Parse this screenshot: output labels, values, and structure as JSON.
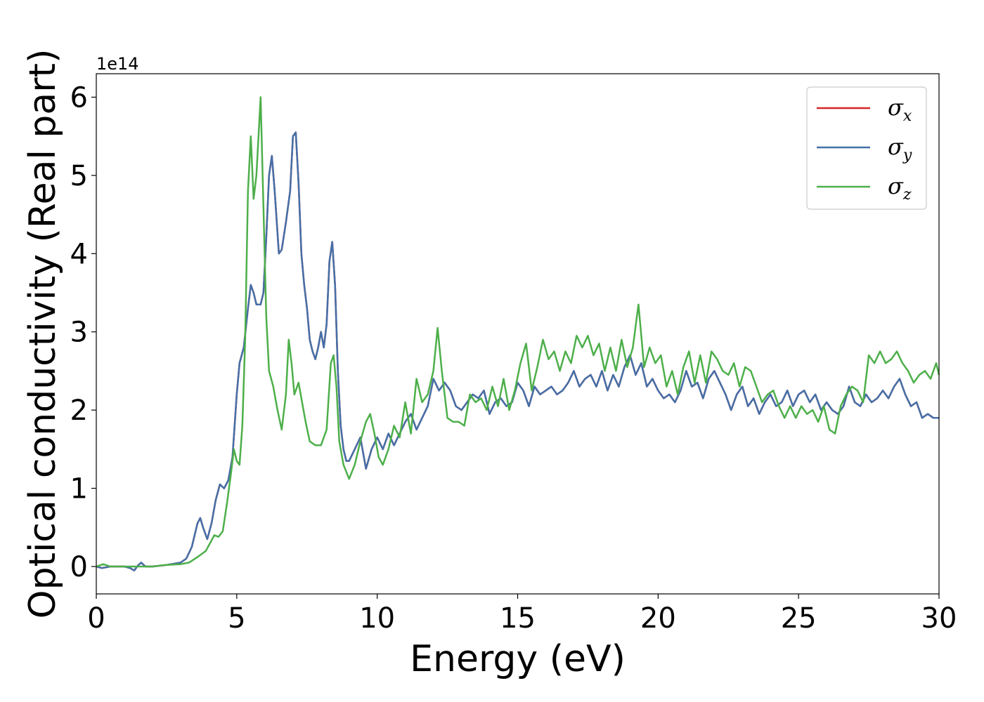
{
  "chart_data": {
    "type": "line",
    "xlabel": "Energy (eV)",
    "ylabel": "Optical conductivity (Real part)",
    "y_offset_label": "1e14",
    "xlim": [
      0,
      30
    ],
    "ylim": [
      -0.35,
      6.3
    ],
    "x_ticks": [
      0,
      5,
      10,
      15,
      20,
      25,
      30
    ],
    "y_ticks": [
      0,
      1,
      2,
      3,
      4,
      5,
      6
    ],
    "grid": false,
    "legend_position": "top-right",
    "series": [
      {
        "name": "σx",
        "symbol": "σ",
        "subscript": "x",
        "color": "#d62728",
        "x": [
          0,
          0.2,
          0.5,
          0.8,
          1.0,
          1.2,
          1.35,
          1.5,
          1.6,
          1.75,
          2.0,
          2.5,
          3.0,
          3.2,
          3.4,
          3.6,
          3.7,
          3.8,
          3.95,
          4.1,
          4.25,
          4.4,
          4.55,
          4.7,
          4.85,
          5.0,
          5.1,
          5.25,
          5.4,
          5.5,
          5.6,
          5.7,
          5.85,
          5.95,
          6.05,
          6.15,
          6.25,
          6.35,
          6.5,
          6.6,
          6.75,
          6.9,
          7.0,
          7.1,
          7.2,
          7.3,
          7.4,
          7.5,
          7.6,
          7.7,
          7.8,
          7.9,
          8.0,
          8.1,
          8.2,
          8.3,
          8.4,
          8.5,
          8.6,
          8.7,
          8.8,
          8.9,
          9.0,
          9.2,
          9.4,
          9.5,
          9.6,
          9.8,
          10.0,
          10.2,
          10.4,
          10.6,
          10.8,
          11.0,
          11.2,
          11.4,
          11.6,
          11.8,
          12.0,
          12.2,
          12.4,
          12.6,
          12.8,
          13.0,
          13.2,
          13.4,
          13.6,
          13.8,
          14.0,
          14.2,
          14.4,
          14.6,
          14.8,
          15.0,
          15.2,
          15.4,
          15.6,
          15.8,
          16.0,
          16.2,
          16.4,
          16.6,
          16.8,
          17.0,
          17.2,
          17.4,
          17.6,
          17.8,
          18.0,
          18.2,
          18.4,
          18.6,
          18.8,
          19.0,
          19.2,
          19.4,
          19.6,
          19.8,
          20.0,
          20.2,
          20.4,
          20.6,
          20.8,
          21.0,
          21.2,
          21.4,
          21.6,
          21.8,
          22.0,
          22.2,
          22.4,
          22.6,
          22.8,
          23.0,
          23.2,
          23.4,
          23.6,
          23.8,
          24.0,
          24.2,
          24.4,
          24.6,
          24.8,
          25.0,
          25.2,
          25.4,
          25.6,
          25.8,
          26.0,
          26.2,
          26.4,
          26.6,
          26.8,
          27.0,
          27.2,
          27.4,
          27.6,
          27.8,
          28.0,
          28.2,
          28.4,
          28.6,
          28.8,
          29.0,
          29.2,
          29.4,
          29.6,
          29.8,
          30.0
        ],
        "y": [
          0.0,
          -0.02,
          0.0,
          0.0,
          0.0,
          -0.02,
          -0.05,
          0.02,
          0.05,
          0.0,
          0.0,
          0.02,
          0.05,
          0.1,
          0.25,
          0.55,
          0.62,
          0.5,
          0.35,
          0.55,
          0.85,
          1.05,
          1.0,
          1.1,
          1.4,
          2.2,
          2.6,
          2.8,
          3.3,
          3.6,
          3.5,
          3.35,
          3.35,
          3.5,
          4.2,
          5.0,
          5.25,
          4.8,
          4.0,
          4.05,
          4.4,
          4.8,
          5.5,
          5.55,
          4.9,
          4.0,
          3.6,
          3.3,
          2.9,
          2.75,
          2.65,
          2.8,
          3.0,
          2.8,
          3.1,
          3.9,
          4.15,
          3.6,
          2.5,
          1.8,
          1.5,
          1.35,
          1.35,
          1.5,
          1.65,
          1.45,
          1.25,
          1.5,
          1.65,
          1.5,
          1.7,
          1.55,
          1.7,
          1.85,
          1.95,
          1.75,
          1.9,
          2.05,
          2.4,
          2.25,
          2.35,
          2.25,
          2.05,
          2.0,
          2.1,
          2.2,
          2.15,
          2.25,
          1.95,
          2.1,
          2.15,
          2.05,
          2.1,
          2.35,
          2.25,
          2.05,
          2.3,
          2.2,
          2.25,
          2.3,
          2.2,
          2.25,
          2.35,
          2.5,
          2.3,
          2.4,
          2.45,
          2.3,
          2.5,
          2.25,
          2.45,
          2.3,
          2.55,
          2.7,
          2.45,
          2.6,
          2.3,
          2.4,
          2.25,
          2.15,
          2.2,
          2.1,
          2.25,
          2.5,
          2.3,
          2.35,
          2.15,
          2.4,
          2.5,
          2.35,
          2.2,
          2.0,
          2.2,
          2.3,
          2.05,
          2.15,
          1.95,
          2.1,
          2.2,
          2.05,
          2.1,
          2.25,
          2.05,
          2.2,
          2.25,
          2.1,
          2.2,
          2.0,
          2.1,
          2.0,
          1.95,
          2.05,
          2.3,
          2.1,
          2.05,
          2.2,
          2.1,
          2.15,
          2.25,
          2.15,
          2.3,
          2.4,
          2.2,
          2.05,
          2.1,
          1.9,
          1.95,
          1.9,
          1.9
        ]
      },
      {
        "name": "σy",
        "symbol": "σ",
        "subscript": "y",
        "color": "#4470a8",
        "x": [
          0,
          0.2,
          0.5,
          0.8,
          1.0,
          1.2,
          1.35,
          1.5,
          1.6,
          1.75,
          2.0,
          2.5,
          3.0,
          3.2,
          3.4,
          3.6,
          3.7,
          3.8,
          3.95,
          4.1,
          4.25,
          4.4,
          4.55,
          4.7,
          4.85,
          5.0,
          5.1,
          5.25,
          5.4,
          5.5,
          5.6,
          5.7,
          5.85,
          5.95,
          6.05,
          6.15,
          6.25,
          6.35,
          6.5,
          6.6,
          6.75,
          6.9,
          7.0,
          7.1,
          7.2,
          7.3,
          7.4,
          7.5,
          7.6,
          7.7,
          7.8,
          7.9,
          8.0,
          8.1,
          8.2,
          8.3,
          8.4,
          8.5,
          8.6,
          8.7,
          8.8,
          8.9,
          9.0,
          9.2,
          9.4,
          9.5,
          9.6,
          9.8,
          10.0,
          10.2,
          10.4,
          10.6,
          10.8,
          11.0,
          11.2,
          11.4,
          11.6,
          11.8,
          12.0,
          12.2,
          12.4,
          12.6,
          12.8,
          13.0,
          13.2,
          13.4,
          13.6,
          13.8,
          14.0,
          14.2,
          14.4,
          14.6,
          14.8,
          15.0,
          15.2,
          15.4,
          15.6,
          15.8,
          16.0,
          16.2,
          16.4,
          16.6,
          16.8,
          17.0,
          17.2,
          17.4,
          17.6,
          17.8,
          18.0,
          18.2,
          18.4,
          18.6,
          18.8,
          19.0,
          19.2,
          19.4,
          19.6,
          19.8,
          20.0,
          20.2,
          20.4,
          20.6,
          20.8,
          21.0,
          21.2,
          21.4,
          21.6,
          21.8,
          22.0,
          22.2,
          22.4,
          22.6,
          22.8,
          23.0,
          23.2,
          23.4,
          23.6,
          23.8,
          24.0,
          24.2,
          24.4,
          24.6,
          24.8,
          25.0,
          25.2,
          25.4,
          25.6,
          25.8,
          26.0,
          26.2,
          26.4,
          26.6,
          26.8,
          27.0,
          27.2,
          27.4,
          27.6,
          27.8,
          28.0,
          28.2,
          28.4,
          28.6,
          28.8,
          29.0,
          29.2,
          29.4,
          29.6,
          29.8,
          30.0
        ],
        "y": [
          0.0,
          -0.02,
          0.0,
          0.0,
          0.0,
          -0.02,
          -0.05,
          0.02,
          0.05,
          0.0,
          0.0,
          0.02,
          0.05,
          0.1,
          0.25,
          0.55,
          0.62,
          0.5,
          0.35,
          0.55,
          0.85,
          1.05,
          1.0,
          1.1,
          1.4,
          2.2,
          2.6,
          2.8,
          3.3,
          3.6,
          3.5,
          3.35,
          3.35,
          3.5,
          4.2,
          5.0,
          5.25,
          4.8,
          4.0,
          4.05,
          4.4,
          4.8,
          5.5,
          5.55,
          4.9,
          4.0,
          3.6,
          3.3,
          2.9,
          2.75,
          2.65,
          2.8,
          3.0,
          2.8,
          3.1,
          3.9,
          4.15,
          3.6,
          2.5,
          1.8,
          1.5,
          1.35,
          1.35,
          1.5,
          1.65,
          1.45,
          1.25,
          1.5,
          1.65,
          1.5,
          1.7,
          1.55,
          1.7,
          1.85,
          1.95,
          1.75,
          1.9,
          2.05,
          2.4,
          2.25,
          2.35,
          2.25,
          2.05,
          2.0,
          2.1,
          2.2,
          2.15,
          2.25,
          1.95,
          2.1,
          2.15,
          2.05,
          2.1,
          2.35,
          2.25,
          2.05,
          2.3,
          2.2,
          2.25,
          2.3,
          2.2,
          2.25,
          2.35,
          2.5,
          2.3,
          2.4,
          2.45,
          2.3,
          2.5,
          2.25,
          2.45,
          2.3,
          2.55,
          2.7,
          2.45,
          2.6,
          2.3,
          2.4,
          2.25,
          2.15,
          2.2,
          2.1,
          2.25,
          2.5,
          2.3,
          2.35,
          2.15,
          2.4,
          2.5,
          2.35,
          2.2,
          2.0,
          2.2,
          2.3,
          2.05,
          2.15,
          1.95,
          2.1,
          2.2,
          2.05,
          2.1,
          2.25,
          2.05,
          2.2,
          2.25,
          2.1,
          2.2,
          2.0,
          2.1,
          2.0,
          1.95,
          2.05,
          2.3,
          2.1,
          2.05,
          2.2,
          2.1,
          2.15,
          2.25,
          2.15,
          2.3,
          2.4,
          2.2,
          2.05,
          2.1,
          1.9,
          1.95,
          1.9,
          1.9
        ]
      },
      {
        "name": "σz",
        "symbol": "σ",
        "subscript": "z",
        "color": "#4daf4a",
        "x": [
          0,
          0.25,
          0.5,
          1.0,
          1.5,
          2.0,
          2.5,
          3.0,
          3.3,
          3.6,
          3.9,
          4.05,
          4.2,
          4.35,
          4.5,
          4.65,
          4.8,
          4.9,
          5.0,
          5.1,
          5.2,
          5.3,
          5.4,
          5.5,
          5.6,
          5.7,
          5.85,
          5.95,
          6.05,
          6.15,
          6.3,
          6.45,
          6.6,
          6.75,
          6.85,
          6.95,
          7.05,
          7.2,
          7.35,
          7.45,
          7.6,
          7.8,
          8.0,
          8.2,
          8.35,
          8.45,
          8.55,
          8.65,
          8.8,
          9.0,
          9.2,
          9.4,
          9.6,
          9.75,
          9.9,
          10.05,
          10.2,
          10.4,
          10.6,
          10.8,
          11.0,
          11.2,
          11.4,
          11.6,
          11.8,
          12.0,
          12.15,
          12.3,
          12.5,
          12.7,
          12.9,
          13.1,
          13.3,
          13.5,
          13.7,
          13.9,
          14.1,
          14.3,
          14.5,
          14.7,
          14.9,
          15.1,
          15.3,
          15.5,
          15.7,
          15.9,
          16.1,
          16.3,
          16.5,
          16.7,
          16.9,
          17.1,
          17.3,
          17.5,
          17.7,
          17.9,
          18.1,
          18.3,
          18.5,
          18.7,
          18.9,
          19.1,
          19.3,
          19.5,
          19.7,
          19.9,
          20.1,
          20.3,
          20.5,
          20.7,
          20.9,
          21.1,
          21.3,
          21.5,
          21.7,
          21.9,
          22.1,
          22.3,
          22.5,
          22.7,
          22.9,
          23.1,
          23.3,
          23.5,
          23.7,
          23.9,
          24.1,
          24.3,
          24.5,
          24.7,
          24.9,
          25.1,
          25.3,
          25.5,
          25.7,
          25.9,
          26.1,
          26.3,
          26.5,
          26.7,
          26.9,
          27.1,
          27.3,
          27.5,
          27.7,
          27.9,
          28.1,
          28.3,
          28.5,
          28.7,
          28.9,
          29.1,
          29.3,
          29.5,
          29.7,
          29.9,
          30.0
        ],
        "y": [
          0.0,
          0.03,
          0.0,
          0.0,
          0.0,
          0.0,
          0.02,
          0.03,
          0.05,
          0.12,
          0.2,
          0.3,
          0.4,
          0.38,
          0.45,
          0.8,
          1.2,
          1.5,
          1.35,
          1.3,
          1.8,
          2.9,
          4.8,
          5.5,
          4.7,
          5.0,
          6.0,
          4.6,
          3.2,
          2.5,
          2.3,
          2.0,
          1.75,
          2.2,
          2.9,
          2.6,
          2.2,
          2.35,
          2.05,
          1.85,
          1.6,
          1.55,
          1.55,
          1.75,
          2.6,
          2.7,
          2.3,
          1.6,
          1.3,
          1.12,
          1.3,
          1.6,
          1.85,
          1.95,
          1.7,
          1.4,
          1.3,
          1.5,
          1.8,
          1.65,
          2.1,
          1.7,
          2.4,
          2.1,
          2.2,
          2.5,
          3.05,
          2.5,
          1.9,
          1.85,
          1.85,
          1.8,
          2.2,
          2.1,
          2.15,
          2.0,
          2.3,
          2.05,
          2.4,
          2.0,
          2.25,
          2.6,
          2.85,
          2.25,
          2.55,
          2.9,
          2.65,
          2.75,
          2.5,
          2.75,
          2.6,
          2.95,
          2.8,
          2.95,
          2.7,
          2.85,
          2.5,
          2.8,
          2.5,
          2.9,
          2.55,
          2.8,
          3.35,
          2.55,
          2.8,
          2.6,
          2.7,
          2.3,
          2.5,
          2.2,
          2.55,
          2.75,
          2.35,
          2.7,
          2.35,
          2.75,
          2.65,
          2.5,
          2.45,
          2.6,
          2.3,
          2.55,
          2.5,
          2.3,
          2.1,
          2.2,
          2.25,
          2.05,
          1.9,
          2.05,
          1.9,
          2.05,
          1.95,
          2.0,
          1.85,
          2.05,
          1.75,
          1.7,
          2.05,
          2.2,
          2.3,
          2.25,
          2.1,
          2.7,
          2.6,
          2.75,
          2.6,
          2.65,
          2.75,
          2.6,
          2.5,
          2.35,
          2.45,
          2.5,
          2.4,
          2.6,
          2.45
        ]
      }
    ]
  }
}
